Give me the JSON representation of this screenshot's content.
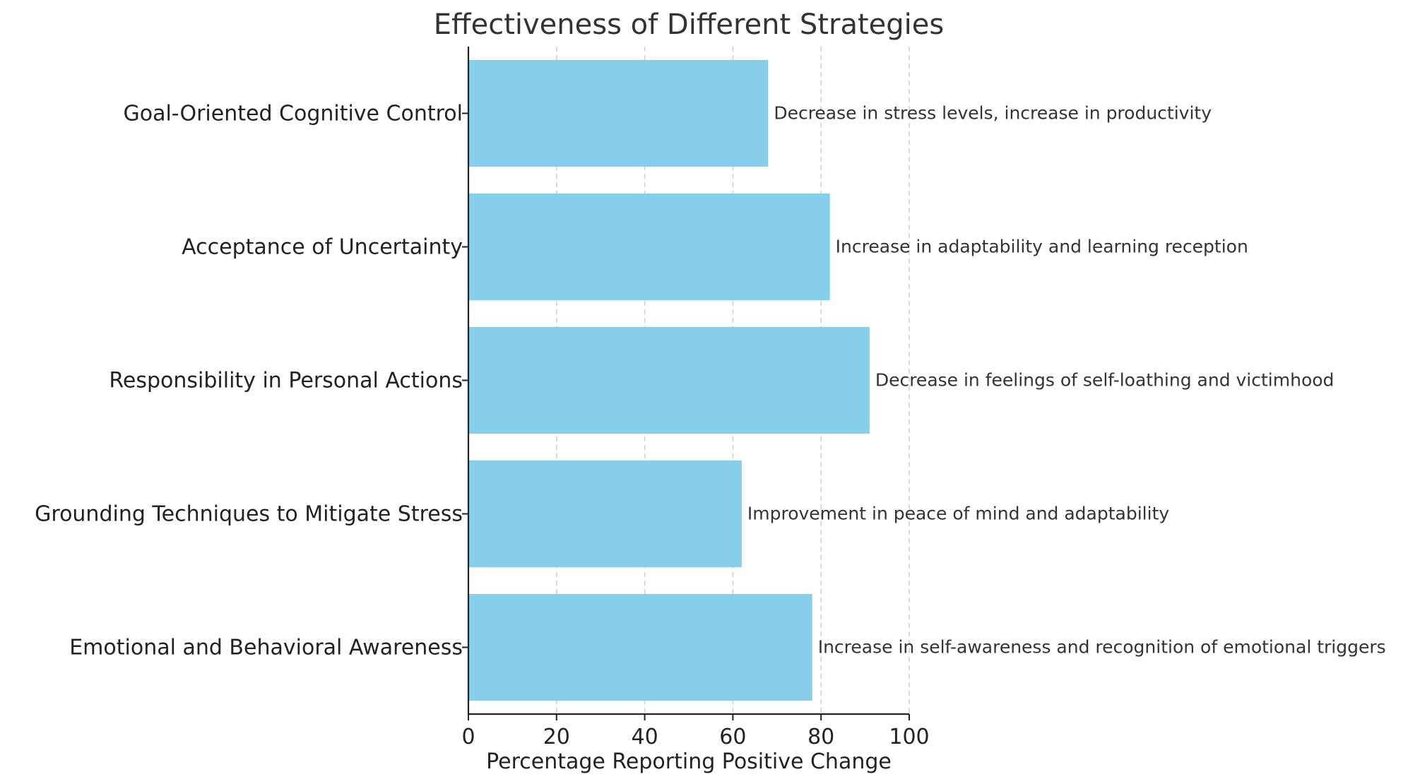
{
  "chart_data": {
    "type": "bar",
    "orientation": "horizontal",
    "title": "Effectiveness of Different Strategies",
    "xlabel": "Percentage Reporting Positive Change",
    "ylabel": "",
    "xlim": [
      0,
      100
    ],
    "xticks": [
      0,
      20,
      40,
      60,
      80,
      100
    ],
    "grid": "vertical dashed",
    "categories": [
      "Emotional and Behavioral Awareness",
      "Grounding Techniques to Mitigate Stress",
      "Responsibility in Personal Actions",
      "Acceptance of Uncertainty",
      "Goal-Oriented Cognitive Control"
    ],
    "values": [
      78,
      62,
      91,
      82,
      68
    ],
    "annotations": [
      "Increase in self-awareness and recognition of emotional triggers",
      "Improvement in peace of mind and adaptability",
      "Decrease in feelings of self-loathing and victimhood",
      "Increase in adaptability and learning reception",
      "Decrease in stress levels, increase in productivity"
    ],
    "bar_color": "#87CEEB"
  }
}
